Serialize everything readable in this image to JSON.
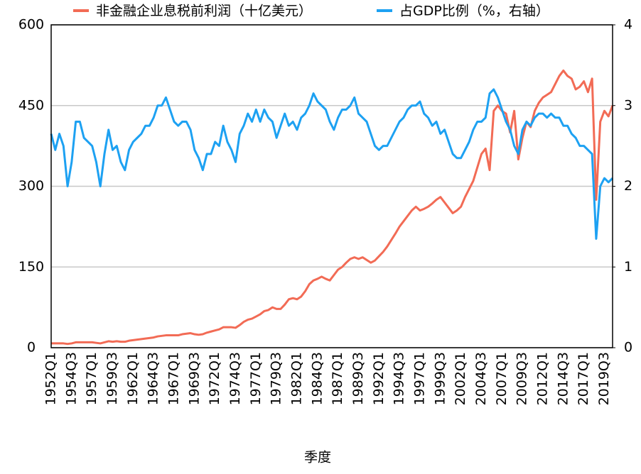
{
  "chart_data": {
    "type": "line",
    "xlabel": "季度",
    "categories": [
      "1952Q1",
      null,
      null,
      null,
      null,
      "1954Q3",
      null,
      null,
      null,
      null,
      "1957Q1",
      null,
      null,
      null,
      null,
      "1959Q3",
      null,
      null,
      null,
      null,
      "1962Q1",
      null,
      null,
      null,
      null,
      "1964Q3",
      null,
      null,
      null,
      null,
      "1967Q1",
      null,
      null,
      null,
      null,
      "1969Q3",
      null,
      null,
      null,
      null,
      "1972Q1",
      null,
      null,
      null,
      null,
      "1974Q3",
      null,
      null,
      null,
      null,
      "1977Q1",
      null,
      null,
      null,
      null,
      "1979Q3",
      null,
      null,
      null,
      null,
      "1982Q1",
      null,
      null,
      null,
      null,
      "1984Q3",
      null,
      null,
      null,
      null,
      "1987Q1",
      null,
      null,
      null,
      null,
      "1989Q3",
      null,
      null,
      null,
      null,
      "1992Q1",
      null,
      null,
      null,
      null,
      "1994Q3",
      null,
      null,
      null,
      null,
      "1997Q1",
      null,
      null,
      null,
      null,
      "1999Q3",
      null,
      null,
      null,
      null,
      "2002Q1",
      null,
      null,
      null,
      null,
      "2004Q3",
      null,
      null,
      null,
      null,
      "2007Q1",
      null,
      null,
      null,
      null,
      "2009Q3",
      null,
      null,
      null,
      null,
      "2012Q1",
      null,
      null,
      null,
      null,
      "2014Q3",
      null,
      null,
      null,
      null,
      "2017Q1",
      null,
      null,
      null,
      null,
      "2019Q3",
      null,
      null
    ],
    "series": [
      {
        "name": "非金融企业息税前利润（十亿美元）",
        "color": "#f26b55",
        "axis": "y",
        "values": [
          8,
          8,
          8,
          8,
          7,
          8,
          10,
          10,
          10,
          10,
          10,
          9,
          8,
          10,
          12,
          11,
          12,
          11,
          11,
          13,
          14,
          15,
          16,
          17,
          18,
          19,
          21,
          22,
          23,
          23,
          23,
          23,
          25,
          26,
          27,
          25,
          24,
          25,
          28,
          30,
          32,
          34,
          38,
          38,
          38,
          37,
          42,
          48,
          52,
          54,
          58,
          62,
          68,
          70,
          75,
          72,
          72,
          80,
          90,
          92,
          90,
          95,
          105,
          118,
          125,
          128,
          132,
          128,
          125,
          135,
          145,
          150,
          158,
          165,
          168,
          165,
          168,
          163,
          158,
          162,
          170,
          178,
          188,
          200,
          212,
          225,
          235,
          245,
          255,
          262,
          255,
          258,
          262,
          268,
          275,
          280,
          270,
          260,
          250,
          255,
          262,
          280,
          295,
          310,
          335,
          360,
          370,
          330,
          440,
          450,
          440,
          435,
          400,
          440,
          350,
          390,
          420,
          410,
          440,
          455,
          465,
          470,
          475,
          490,
          505,
          515,
          505,
          500,
          480,
          485,
          495,
          475,
          500,
          275,
          420,
          440,
          430,
          450
        ]
      },
      {
        "name": "占GDP比例（%，右轴）",
        "color": "#1da1f2",
        "axis": "y2",
        "values": [
          2.65,
          2.45,
          2.65,
          2.5,
          2.0,
          2.3,
          2.8,
          2.8,
          2.6,
          2.55,
          2.5,
          2.3,
          2.0,
          2.4,
          2.7,
          2.45,
          2.5,
          2.3,
          2.2,
          2.45,
          2.55,
          2.6,
          2.65,
          2.75,
          2.75,
          2.85,
          3.0,
          3.0,
          3.1,
          2.95,
          2.8,
          2.75,
          2.8,
          2.8,
          2.7,
          2.45,
          2.35,
          2.2,
          2.4,
          2.4,
          2.55,
          2.5,
          2.75,
          2.55,
          2.45,
          2.3,
          2.65,
          2.75,
          2.9,
          2.8,
          2.95,
          2.8,
          2.95,
          2.85,
          2.8,
          2.6,
          2.75,
          2.9,
          2.75,
          2.8,
          2.7,
          2.85,
          2.9,
          3.0,
          3.15,
          3.05,
          3.0,
          2.95,
          2.8,
          2.7,
          2.85,
          2.95,
          2.95,
          3.0,
          3.1,
          2.9,
          2.85,
          2.8,
          2.65,
          2.5,
          2.45,
          2.5,
          2.5,
          2.6,
          2.7,
          2.8,
          2.85,
          2.95,
          3.0,
          3.0,
          3.05,
          2.9,
          2.85,
          2.75,
          2.8,
          2.65,
          2.7,
          2.55,
          2.4,
          2.35,
          2.35,
          2.45,
          2.55,
          2.7,
          2.8,
          2.8,
          2.85,
          3.15,
          3.2,
          3.1,
          2.95,
          2.8,
          2.7,
          2.5,
          2.4,
          2.7,
          2.8,
          2.75,
          2.85,
          2.9,
          2.9,
          2.85,
          2.9,
          2.85,
          2.85,
          2.75,
          2.75,
          2.65,
          2.6,
          2.5,
          2.5,
          2.45,
          2.4,
          1.35,
          2.0,
          2.1,
          2.05,
          2.1
        ]
      }
    ],
    "ylim": [
      0,
      600
    ],
    "yticks": [
      0,
      150,
      300,
      450,
      600
    ],
    "y2lim": [
      0,
      4
    ],
    "y2ticks": [
      0,
      1,
      2,
      3,
      4
    ],
    "grid": true,
    "legend": "top"
  }
}
